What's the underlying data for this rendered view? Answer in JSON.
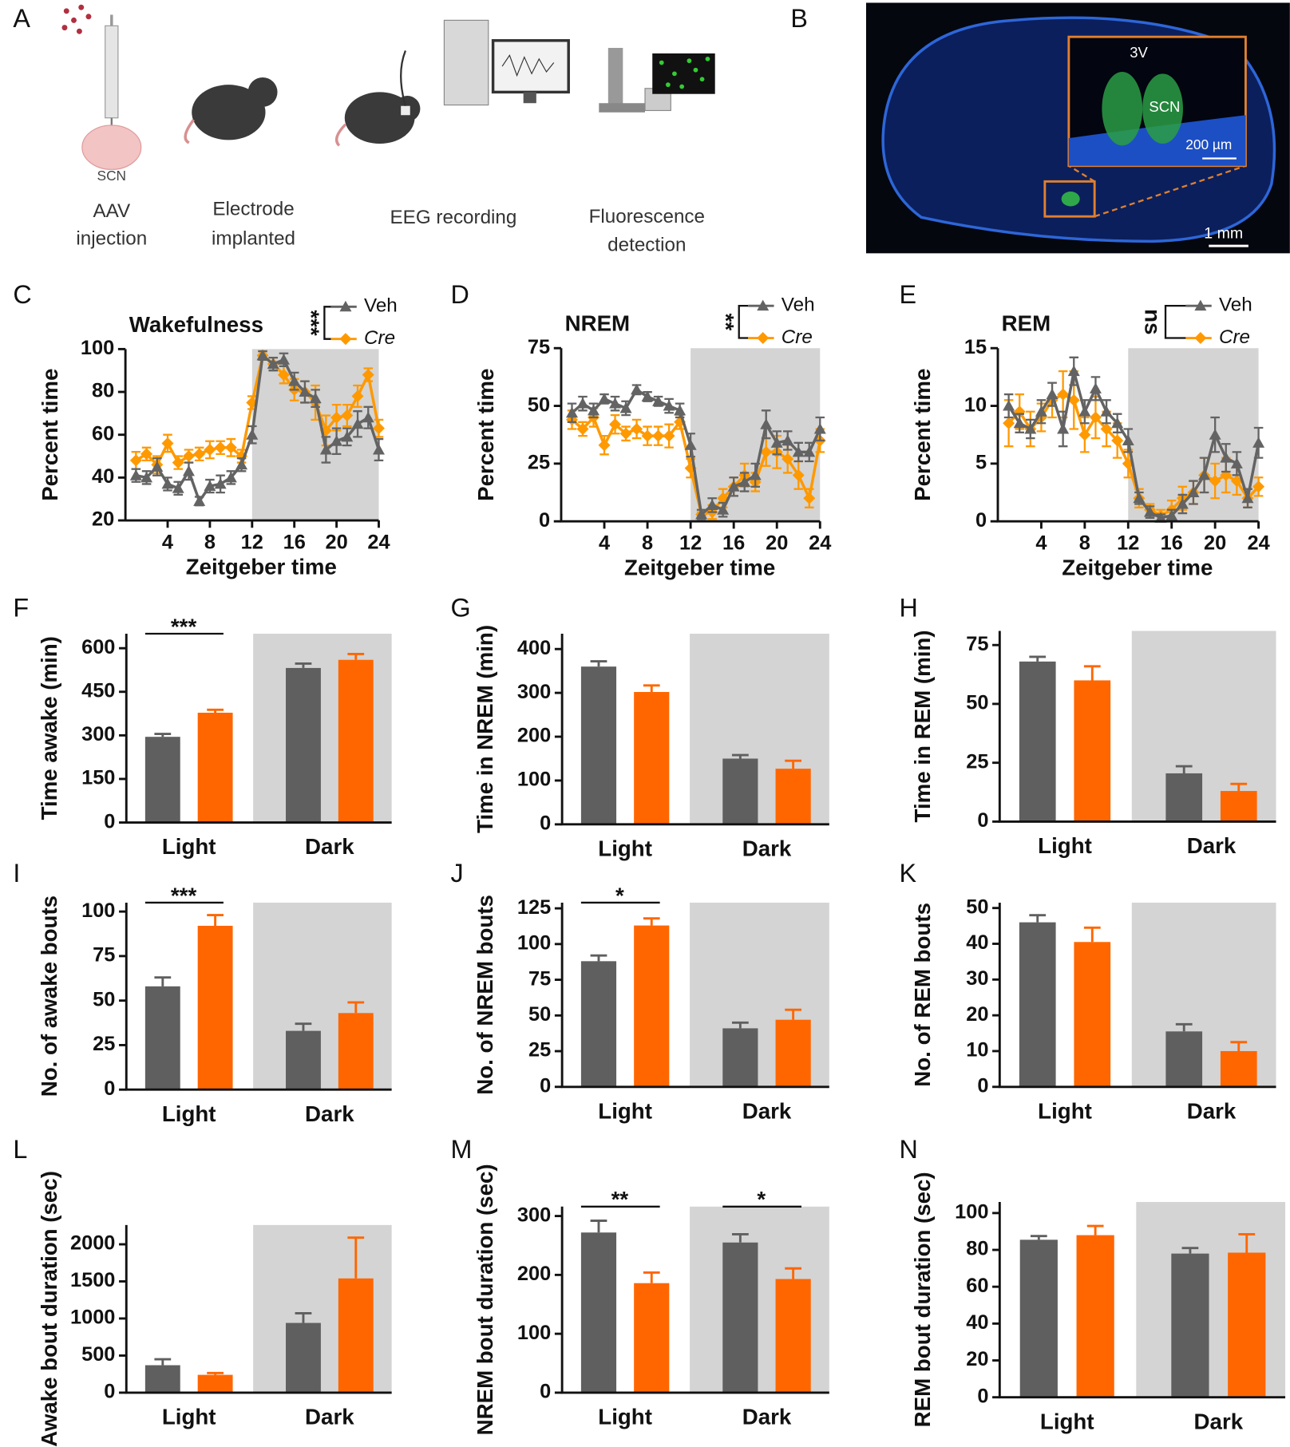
{
  "panel_a": {
    "letter": "A",
    "brain_label": "SCN",
    "steps": [
      [
        "AAV",
        "injection"
      ],
      [
        "Electrode",
        "implanted"
      ],
      [
        "EEG recording"
      ],
      [
        "Fluorescence",
        "detection"
      ]
    ]
  },
  "panel_b": {
    "letter": "B",
    "ventricle": "3V",
    "nucleus": "SCN",
    "inset_scale": "200 µm",
    "scale": "1 mm"
  },
  "chart_data": [
    {
      "type": "line",
      "panel": "C",
      "title": "Wakefulness",
      "significance": "***",
      "xlabel": "Zeitgeber time",
      "ylabel": "Percent time",
      "x": [
        1,
        2,
        3,
        4,
        5,
        6,
        7,
        8,
        9,
        10,
        11,
        12,
        13,
        14,
        15,
        16,
        17,
        18,
        19,
        20,
        21,
        22,
        23,
        24
      ],
      "xlim": [
        0,
        24
      ],
      "xticks": [
        4,
        8,
        12,
        16,
        20,
        24
      ],
      "ylim": [
        20,
        100
      ],
      "yticks": [
        20,
        40,
        60,
        80,
        100
      ],
      "dark_phase": [
        12,
        24
      ],
      "series": [
        {
          "name": "Veh",
          "color": "#636363",
          "marker": "triangle",
          "values": [
            41,
            40,
            45,
            37,
            35,
            43,
            29,
            36,
            37,
            40,
            46,
            60,
            97,
            93,
            95,
            85,
            80,
            77,
            53,
            57,
            59,
            65,
            68,
            53
          ],
          "errors": [
            3,
            3,
            4,
            3,
            3,
            4,
            2,
            3,
            4,
            3,
            3,
            4,
            2,
            3,
            3,
            4,
            5,
            4,
            6,
            6,
            4,
            6,
            5,
            5
          ]
        },
        {
          "name": "Cre",
          "color": "#ff9900",
          "marker": "diamond",
          "italic": true,
          "values": [
            48,
            51,
            46,
            56,
            47,
            50,
            51,
            53,
            54,
            54,
            50,
            75,
            97,
            93,
            88,
            81,
            80,
            75,
            62,
            68,
            69,
            78,
            88,
            63
          ],
          "errors": [
            4,
            3,
            4,
            4,
            3,
            3,
            3,
            4,
            3,
            4,
            3,
            3,
            2,
            3,
            4,
            5,
            5,
            8,
            7,
            6,
            5,
            5,
            3,
            4
          ]
        }
      ]
    },
    {
      "type": "line",
      "panel": "D",
      "title": "NREM",
      "significance": "**",
      "xlabel": "Zeitgeber time",
      "ylabel": "Percent time",
      "x": [
        1,
        2,
        3,
        4,
        5,
        6,
        7,
        8,
        9,
        10,
        11,
        12,
        13,
        14,
        15,
        16,
        17,
        18,
        19,
        20,
        21,
        22,
        23,
        24
      ],
      "xlim": [
        0,
        24
      ],
      "xticks": [
        4,
        8,
        12,
        16,
        20,
        24
      ],
      "ylim": [
        0,
        75
      ],
      "yticks": [
        0,
        25,
        50,
        75
      ],
      "dark_phase": [
        12,
        24
      ],
      "series": [
        {
          "name": "Veh",
          "color": "#636363",
          "marker": "triangle",
          "values": [
            47,
            51,
            48,
            53,
            51,
            49,
            57,
            54,
            52,
            50,
            48,
            33,
            3,
            7,
            5,
            15,
            17,
            20,
            42,
            34,
            35,
            30,
            30,
            40
          ],
          "errors": [
            4,
            3,
            3,
            2,
            3,
            3,
            2,
            2,
            2,
            3,
            3,
            5,
            2,
            3,
            3,
            4,
            4,
            5,
            6,
            5,
            4,
            4,
            4,
            5
          ]
        },
        {
          "name": "Cre",
          "color": "#ff9900",
          "marker": "diamond",
          "italic": true,
          "values": [
            44,
            40,
            45,
            33,
            42,
            38,
            40,
            37,
            37,
            37,
            43,
            23,
            3,
            4,
            10,
            15,
            20,
            17,
            30,
            30,
            27,
            20,
            10,
            35
          ],
          "errors": [
            4,
            3,
            4,
            4,
            4,
            3,
            4,
            4,
            4,
            5,
            3,
            4,
            1,
            3,
            4,
            4,
            5,
            4,
            6,
            7,
            6,
            6,
            4,
            5
          ]
        }
      ]
    },
    {
      "type": "line",
      "panel": "E",
      "title": "REM",
      "significance": "ns",
      "xlabel": "Zeitgeber time",
      "ylabel": "Percent time",
      "x": [
        1,
        2,
        3,
        4,
        5,
        6,
        7,
        8,
        9,
        10,
        11,
        12,
        13,
        14,
        15,
        16,
        17,
        18,
        19,
        20,
        21,
        22,
        23,
        24
      ],
      "xlim": [
        0,
        24
      ],
      "xticks": [
        4,
        8,
        12,
        16,
        20,
        24
      ],
      "ylim": [
        0,
        15
      ],
      "yticks": [
        0,
        5,
        10,
        15
      ],
      "dark_phase": [
        12,
        24
      ],
      "series": [
        {
          "name": "Veh",
          "color": "#636363",
          "marker": "triangle",
          "values": [
            10,
            8.5,
            8,
            9.5,
            11,
            8,
            13,
            9.5,
            11.5,
            9.5,
            8.5,
            7,
            2,
            0.8,
            0.3,
            0.5,
            1.5,
            2.5,
            4,
            7.5,
            5.5,
            5,
            2,
            6.8
          ],
          "errors": [
            1,
            0.8,
            0.8,
            1,
            1,
            1.5,
            1.2,
            1,
            1,
            1,
            0.8,
            1,
            0.5,
            0.5,
            0.3,
            0.5,
            0.8,
            1,
            1.5,
            1.5,
            1.2,
            1,
            0.8,
            1.3
          ]
        },
        {
          "name": "Cre",
          "color": "#ff9900",
          "marker": "diamond",
          "italic": true,
          "values": [
            8.5,
            9.5,
            8,
            9,
            10.5,
            11,
            10.5,
            7.5,
            9,
            8,
            7,
            5,
            2,
            1,
            0.5,
            1,
            2,
            2.5,
            4,
            3.5,
            4,
            3.5,
            2,
            3
          ],
          "errors": [
            2,
            1.5,
            1.5,
            1.2,
            1.5,
            2,
            2.5,
            1.5,
            1.8,
            1.5,
            1.5,
            1.2,
            0.8,
            0.5,
            0.5,
            0.8,
            1,
            1,
            1.5,
            1.5,
            1.5,
            1.2,
            0.8,
            0.8
          ]
        }
      ]
    },
    {
      "type": "bar",
      "panel": "F",
      "ylabel": "Time awake (min)",
      "categories": [
        "Light",
        "Dark"
      ],
      "shaded_categories": [
        "Dark"
      ],
      "ylim": [
        0,
        650
      ],
      "yticks": [
        0,
        150,
        300,
        450,
        600
      ],
      "series": [
        {
          "color": "#5f5f5f",
          "values": [
            295,
            532
          ],
          "errors": [
            10,
            15
          ]
        },
        {
          "color": "#ff6600",
          "values": [
            378,
            560
          ],
          "errors": [
            10,
            20
          ]
        }
      ],
      "annotations": [
        {
          "text": "***",
          "at": "Light"
        }
      ]
    },
    {
      "type": "bar",
      "panel": "G",
      "ylabel": "Time in NREM (min)",
      "categories": [
        "Light",
        "Dark"
      ],
      "shaded_categories": [
        "Dark"
      ],
      "ylim": [
        0,
        435
      ],
      "yticks": [
        0,
        100,
        200,
        300,
        400
      ],
      "series": [
        {
          "color": "#5f5f5f",
          "values": [
            360,
            150
          ],
          "errors": [
            12,
            8
          ]
        },
        {
          "color": "#ff6600",
          "values": [
            302,
            127
          ],
          "errors": [
            15,
            18
          ]
        }
      ],
      "annotations": []
    },
    {
      "type": "bar",
      "panel": "H",
      "ylabel": "Time in REM (min)",
      "categories": [
        "Light",
        "Dark"
      ],
      "shaded_categories": [
        "Dark"
      ],
      "ylim": [
        0,
        81
      ],
      "yticks": [
        0,
        25,
        50,
        75
      ],
      "series": [
        {
          "color": "#5f5f5f",
          "values": [
            68,
            20.5
          ],
          "errors": [
            2,
            3
          ]
        },
        {
          "color": "#ff6600",
          "values": [
            60,
            13
          ],
          "errors": [
            6,
            3
          ]
        }
      ],
      "annotations": []
    },
    {
      "type": "bar",
      "panel": "I",
      "ylabel": "No. of awake bouts",
      "categories": [
        "Light",
        "Dark"
      ],
      "shaded_categories": [
        "Dark"
      ],
      "ylim": [
        0,
        105
      ],
      "yticks": [
        0,
        25,
        50,
        75,
        100
      ],
      "series": [
        {
          "color": "#5f5f5f",
          "values": [
            58,
            33
          ],
          "errors": [
            5,
            4
          ]
        },
        {
          "color": "#ff6600",
          "values": [
            92,
            43
          ],
          "errors": [
            6,
            6
          ]
        }
      ],
      "annotations": [
        {
          "text": "***",
          "at": "Light"
        }
      ]
    },
    {
      "type": "bar",
      "panel": "J",
      "ylabel": "No. of NREM bouts",
      "categories": [
        "Light",
        "Dark"
      ],
      "shaded_categories": [
        "Dark"
      ],
      "ylim": [
        0,
        129
      ],
      "yticks": [
        0,
        25,
        50,
        75,
        100,
        125
      ],
      "series": [
        {
          "color": "#5f5f5f",
          "values": [
            88,
            41
          ],
          "errors": [
            4,
            4
          ]
        },
        {
          "color": "#ff6600",
          "values": [
            113,
            47
          ],
          "errors": [
            5,
            7
          ]
        }
      ],
      "annotations": [
        {
          "text": "*",
          "at": "Light"
        }
      ]
    },
    {
      "type": "bar",
      "panel": "K",
      "ylabel": "No. of REM bouts",
      "categories": [
        "Light",
        "Dark"
      ],
      "shaded_categories": [
        "Dark"
      ],
      "ylim": [
        0,
        51.5
      ],
      "yticks": [
        0,
        10,
        20,
        30,
        40,
        50
      ],
      "series": [
        {
          "color": "#5f5f5f",
          "values": [
            46,
            15.5
          ],
          "errors": [
            2,
            2
          ]
        },
        {
          "color": "#ff6600",
          "values": [
            40.5,
            10
          ],
          "errors": [
            4,
            2.5
          ]
        }
      ],
      "annotations": []
    },
    {
      "type": "bar",
      "panel": "L",
      "ylabel": "Awake bout duration (sec)",
      "categories": [
        "Light",
        "Dark"
      ],
      "shaded_categories": [
        "Dark"
      ],
      "ylim": [
        0,
        2260
      ],
      "yticks": [
        0,
        500,
        1000,
        1500,
        2000
      ],
      "series": [
        {
          "color": "#5f5f5f",
          "values": [
            370,
            940
          ],
          "errors": [
            80,
            130
          ]
        },
        {
          "color": "#ff6600",
          "values": [
            240,
            1540
          ],
          "errors": [
            25,
            550
          ]
        }
      ],
      "annotations": []
    },
    {
      "type": "bar",
      "panel": "M",
      "ylabel": "NREM bout duration (sec)",
      "categories": [
        "Light",
        "Dark"
      ],
      "shaded_categories": [
        "Dark"
      ],
      "ylim": [
        0,
        316
      ],
      "yticks": [
        0,
        100,
        200,
        300
      ],
      "series": [
        {
          "color": "#5f5f5f",
          "values": [
            272,
            255
          ],
          "errors": [
            20,
            14
          ]
        },
        {
          "color": "#ff6600",
          "values": [
            186,
            193
          ],
          "errors": [
            18,
            18
          ]
        }
      ],
      "annotations": [
        {
          "text": "**",
          "at": "Light"
        },
        {
          "text": "*",
          "at": "Dark"
        }
      ]
    },
    {
      "type": "bar",
      "panel": "N",
      "ylabel": "REM bout duration (sec)",
      "categories": [
        "Light",
        "Dark"
      ],
      "shaded_categories": [
        "Dark"
      ],
      "ylim": [
        0,
        106
      ],
      "yticks": [
        0,
        20,
        40,
        60,
        80,
        100
      ],
      "series": [
        {
          "color": "#5f5f5f",
          "values": [
            85.5,
            78
          ],
          "errors": [
            2,
            3
          ]
        },
        {
          "color": "#ff6600",
          "values": [
            88,
            78.5
          ],
          "errors": [
            5,
            10
          ]
        }
      ],
      "annotations": []
    }
  ]
}
